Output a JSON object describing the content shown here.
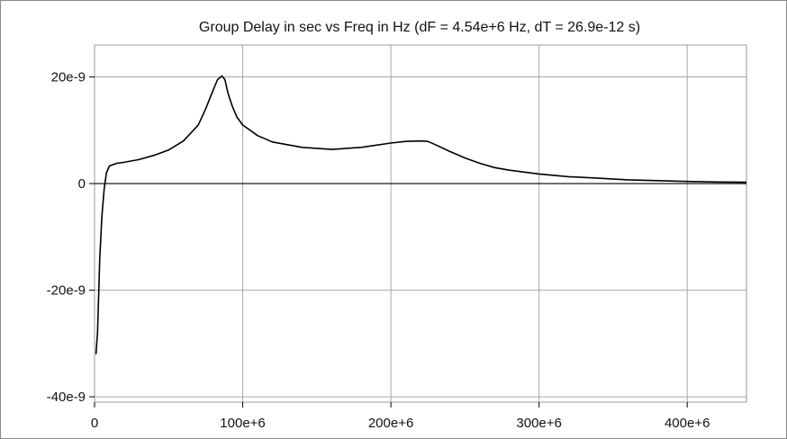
{
  "chart_data": {
    "type": "line",
    "title": "Group Delay in sec vs Freq in Hz  (dF = 4.54e+6 Hz, dT = 26.9e-12 s)",
    "xlabel": "",
    "ylabel": "",
    "xlim": [
      0,
      440000000
    ],
    "ylim": [
      -4.1e-08,
      2.6e-08
    ],
    "x_ticks": [
      {
        "value": 0,
        "label": "0"
      },
      {
        "value": 100000000,
        "label": "100e+6"
      },
      {
        "value": 200000000,
        "label": "200e+6"
      },
      {
        "value": 300000000,
        "label": "300e+6"
      },
      {
        "value": 400000000,
        "label": "400e+6"
      }
    ],
    "y_ticks": [
      {
        "value": 2e-08,
        "label": "20e-9"
      },
      {
        "value": 0,
        "label": "0"
      },
      {
        "value": -2e-08,
        "label": "-20e-9"
      },
      {
        "value": -4e-08,
        "label": "-40e-9"
      }
    ],
    "grid": true,
    "legend": "none",
    "colors": {
      "line": "#000000",
      "grid": "#a8a8a8",
      "zero_line": "#000000"
    },
    "series": [
      {
        "x": [
          1000000,
          2000000,
          3500000,
          5000000,
          6500000,
          8000000,
          10000000,
          15000000,
          20000000,
          30000000,
          40000000,
          50000000,
          60000000,
          70000000,
          75000000,
          80000000,
          83000000,
          86000000,
          88000000,
          90000000,
          93000000,
          96000000,
          100000000,
          110000000,
          120000000,
          140000000,
          160000000,
          180000000,
          200000000,
          210000000,
          220000000,
          225000000,
          230000000,
          240000000,
          250000000,
          260000000,
          270000000,
          280000000,
          300000000,
          320000000,
          340000000,
          360000000,
          380000000,
          400000000,
          420000000,
          440000000
        ],
        "y": [
          -3.2e-08,
          -2.8e-08,
          -1.4e-08,
          -6e-09,
          -1e-09,
          2e-09,
          3.3e-09,
          3.8e-09,
          4e-09,
          4.5e-09,
          5.3e-09,
          6.3e-09,
          8e-09,
          1.1e-08,
          1.4e-08,
          1.75e-08,
          1.95e-08,
          2.02e-08,
          1.95e-08,
          1.7e-08,
          1.45e-08,
          1.25e-08,
          1.1e-08,
          9e-09,
          7.8e-09,
          6.8e-09,
          6.4e-09,
          6.8e-09,
          7.6e-09,
          7.9e-09,
          8e-09,
          7.9e-09,
          7.3e-09,
          6e-09,
          4.8e-09,
          3.8e-09,
          3e-09,
          2.5e-09,
          1.8e-09,
          1.3e-09,
          1e-09,
          7e-10,
          5.5e-10,
          4e-10,
          3e-10,
          2.5e-10
        ]
      }
    ]
  }
}
